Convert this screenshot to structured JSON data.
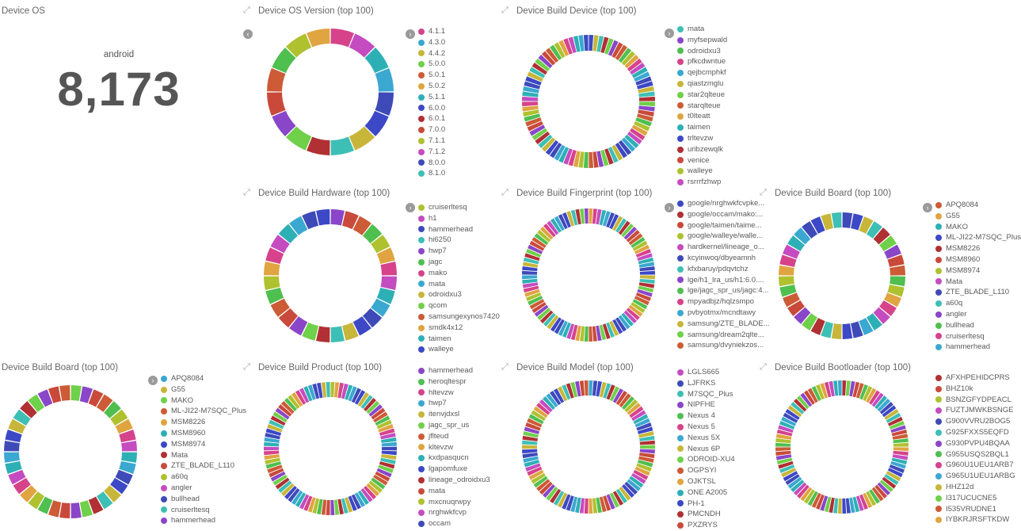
{
  "colors": [
    "#d6438a",
    "#3ebfb5",
    "#afc12f",
    "#3c48c6",
    "#cc5b36",
    "#3aa8d0",
    "#8a46c8",
    "#c44cc0",
    "#b03033",
    "#e0a440",
    "#c8b63a",
    "#4fbf4f",
    "#3e4ab8",
    "#c94a3a",
    "#2db0b5",
    "#6fd04a"
  ],
  "metric": {
    "title": "Device OS",
    "label": "android",
    "value": "8,173"
  },
  "panels": [
    {
      "id": "os-version",
      "title": "Device OS Version (top 100)",
      "expand_icon": true,
      "prev_arrow": true,
      "legend_arrow": true,
      "segments": 16,
      "legend": [
        "4.1.1",
        "4.3.0",
        "4.4.2",
        "5.0.0",
        "5.0.1",
        "5.0.2",
        "5.1.1",
        "6.0.0",
        "6.0.1",
        "7.0.0",
        "7.1.1",
        "7.1.2",
        "8.0.0",
        "8.1.0"
      ]
    },
    {
      "id": "build-device",
      "title": "Device Build Device (top 100)",
      "expand_icon": true,
      "legend_arrow": true,
      "segments": 80,
      "legend": [
        "mata",
        "myfsepwald",
        "odroidxu3",
        "pfkcdwntue",
        "qejbcmphkf",
        "qiastzmglu",
        "star2qlteue",
        "starqlteue",
        "t0lteatt",
        "taimen",
        "trltevzw",
        "uribzewqlk",
        "venice",
        "walleye",
        "rsrrrfzhwp"
      ]
    },
    {
      "id": "build-hardware",
      "title": "Device Build Hardware (top 100)",
      "expand_icon": true,
      "legend_arrow": true,
      "segments": 28,
      "legend": [
        "cruiserltesq",
        "h1",
        "hammerhead",
        "hi6250",
        "hwp7",
        "jagc",
        "mako",
        "mata",
        "odroidxu3",
        "qcom",
        "samsungexynos7420",
        "smdk4x12",
        "taimen",
        "walleye"
      ]
    },
    {
      "id": "build-fingerprint",
      "title": "Device Build Fingerprint (top 100)",
      "expand_icon": true,
      "legend_arrow": true,
      "segments": 92,
      "legend": [
        "google/nrghwkfcvpke...",
        "google/occam/mako:...",
        "google/taimen/taime...",
        "google/walleye/walle...",
        "hardkernel/lineage_o...",
        "kcyinwoq/dbyeamnh",
        "kfxbaruy/pdqvtchz",
        "lge/h1_lra_us/h1:6.0....",
        "lge/jagc_spr_us/jagc:4...",
        "mpyadbjz/hqlzsmpo",
        "pvbyotmx/mcndtawy",
        "samsung/ZTE_BLADE...",
        "samsung/dream2qlte...",
        "samsung/dvyniekzos..."
      ]
    },
    {
      "id": "build-board-1",
      "title": "Device Build Board (top 100)",
      "expand_icon": true,
      "legend_arrow": true,
      "segments": 36,
      "legend": [
        "APQ8084",
        "G55",
        "MAKO",
        "ML-JI22-M7SQC_Plus",
        "MSM8226",
        "MSM8960",
        "MSM8974",
        "Mata",
        "ZTE_BLADE_L110",
        "a60q",
        "angler",
        "bullhead",
        "cruiserltesq",
        "hammerhead"
      ]
    },
    {
      "id": "build-board-2",
      "title": "Device Build Board (top 100)",
      "expand_icon": false,
      "legend_arrow": true,
      "segments": 36,
      "legend": [
        "APQ8084",
        "G55",
        "MAKO",
        "ML-JI22-M7SQC_Plus",
        "MSM8226",
        "MSM8960",
        "MSM8974",
        "Mata",
        "ZTE_BLADE_L110",
        "a60q",
        "angler",
        "bullhead",
        "cruiserltesq",
        "hammerhead"
      ]
    },
    {
      "id": "build-product",
      "title": "Device Build Product (top 100)",
      "expand_icon": true,
      "legend_arrow": false,
      "segments": 90,
      "legend": [
        "hammerhead",
        "heroqltespr",
        "hltevzw",
        "hwp7",
        "itenvjdxsl",
        "jagc_spr_us",
        "jflteud",
        "kltevzw",
        "kxdpasqucn",
        "lgapomfuxe",
        "lineage_odroidxu3",
        "mata",
        "mxcnuqrwpy",
        "nrghwkfcvp",
        "occam"
      ]
    },
    {
      "id": "build-model",
      "title": "Device Build Model (top 100)",
      "expand_icon": true,
      "legend_arrow": false,
      "segments": 90,
      "legend": [
        "LGLS665",
        "LJFRKS",
        "M7SQC_Plus",
        "NIPFHE",
        "Nexus 4",
        "Nexus 5",
        "Nexus 5X",
        "Nexus 6P",
        "ODROID-XU4",
        "OGPSYI",
        "OJKTSL",
        "ONE A2005",
        "PH-1",
        "PMCNDH",
        "PXZRYS"
      ]
    },
    {
      "id": "build-bootloader",
      "title": "Device Build Bootloader (top 100)",
      "expand_icon": true,
      "legend_arrow": false,
      "segments": 92,
      "legend": [
        "AFXHPEHIDCPRS",
        "BHZ10k",
        "BSNZGFYDPEACL",
        "FUZTJMWKBSNGE",
        "G900VVRU2BOG5",
        "G925FXXS5EQFD",
        "G930PVPU4BQAA",
        "G955USQS2BQL1",
        "G960U1UEU1ARB7",
        "G965U1UEU1ARBG",
        "HHZ12d",
        "I317UCUCNE5",
        "I535VRUDNE1",
        "IYBKRJRSFTKDW"
      ]
    }
  ]
}
